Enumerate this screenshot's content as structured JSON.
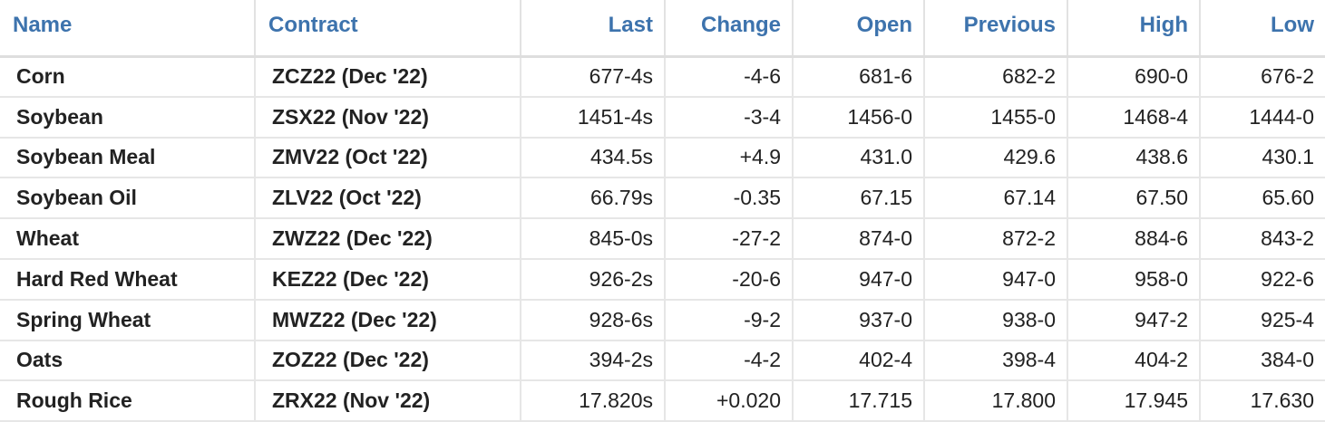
{
  "headers": {
    "name": "Name",
    "contract": "Contract",
    "last": "Last",
    "change": "Change",
    "open": "Open",
    "previous": "Previous",
    "high": "High",
    "low": "Low"
  },
  "rows": [
    {
      "name": "Corn",
      "contract": "ZCZ22 (Dec '22)",
      "last": "677-4s",
      "change": "-4-6",
      "direction": "down",
      "open": "681-6",
      "previous": "682-2",
      "high": "690-0",
      "low": "676-2"
    },
    {
      "name": "Soybean",
      "contract": "ZSX22 (Nov '22)",
      "last": "1451-4s",
      "change": "-3-4",
      "direction": "down",
      "open": "1456-0",
      "previous": "1455-0",
      "high": "1468-4",
      "low": "1444-0"
    },
    {
      "name": "Soybean Meal",
      "contract": "ZMV22 (Oct '22)",
      "last": "434.5s",
      "change": "+4.9",
      "direction": "up",
      "open": "431.0",
      "previous": "429.6",
      "high": "438.6",
      "low": "430.1"
    },
    {
      "name": "Soybean Oil",
      "contract": "ZLV22 (Oct '22)",
      "last": "66.79s",
      "change": "-0.35",
      "direction": "down",
      "open": "67.15",
      "previous": "67.14",
      "high": "67.50",
      "low": "65.60"
    },
    {
      "name": "Wheat",
      "contract": "ZWZ22 (Dec '22)",
      "last": "845-0s",
      "change": "-27-2",
      "direction": "down",
      "open": "874-0",
      "previous": "872-2",
      "high": "884-6",
      "low": "843-2"
    },
    {
      "name": "Hard Red Wheat",
      "contract": "KEZ22 (Dec '22)",
      "last": "926-2s",
      "change": "-20-6",
      "direction": "down",
      "open": "947-0",
      "previous": "947-0",
      "high": "958-0",
      "low": "922-6"
    },
    {
      "name": "Spring Wheat",
      "contract": "MWZ22 (Dec '22)",
      "last": "928-6s",
      "change": "-9-2",
      "direction": "down",
      "open": "937-0",
      "previous": "938-0",
      "high": "947-2",
      "low": "925-4"
    },
    {
      "name": "Oats",
      "contract": "ZOZ22 (Dec '22)",
      "last": "394-2s",
      "change": "-4-2",
      "direction": "down",
      "open": "402-4",
      "previous": "398-4",
      "high": "404-2",
      "low": "384-0"
    },
    {
      "name": "Rough Rice",
      "contract": "ZRX22 (Nov '22)",
      "last": "17.820s",
      "change": "+0.020",
      "direction": "up",
      "open": "17.715",
      "previous": "17.800",
      "high": "17.945",
      "low": "17.630"
    }
  ],
  "colors": {
    "link": "#3d73ad",
    "negative": "#e02424",
    "positive": "#2e9b2e",
    "text": "#222222",
    "border": "#e6e6e6"
  }
}
